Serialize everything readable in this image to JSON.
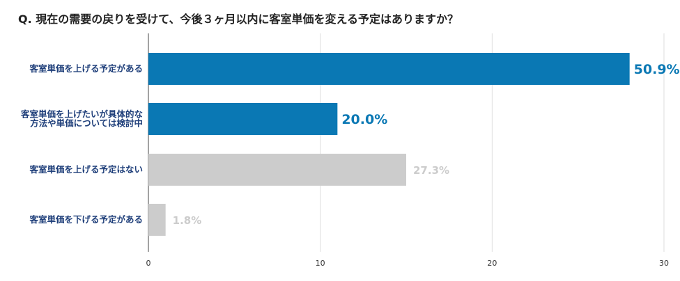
{
  "question": "Q. 現在の需要の戻りを受けて、今後３ヶ月以内に客室単価を変える予定はありますか？",
  "chart_data": {
    "type": "bar",
    "orientation": "horizontal",
    "categories": [
      [
        "客室単価を上げる予定がある"
      ],
      [
        "客室単価を上げたいが具体的な",
        "方法や単価については検討中"
      ],
      [
        "客室単価を上げる予定はない"
      ],
      [
        "客室単価を下げる予定がある"
      ]
    ],
    "values": [
      28,
      11,
      15,
      1
    ],
    "percent_labels": [
      "50.9%",
      "20.0%",
      "27.3%",
      "1.8%"
    ],
    "bar_colors": [
      "#0a78b4",
      "#0a78b4",
      "#cccccc",
      "#cccccc"
    ],
    "label_colors": [
      "#0a78b4",
      "#0a78b4",
      "#cccccc",
      "#cccccc"
    ],
    "xlim": [
      0,
      30
    ],
    "xticks": [
      0,
      10,
      20,
      30
    ],
    "grid": true
  }
}
